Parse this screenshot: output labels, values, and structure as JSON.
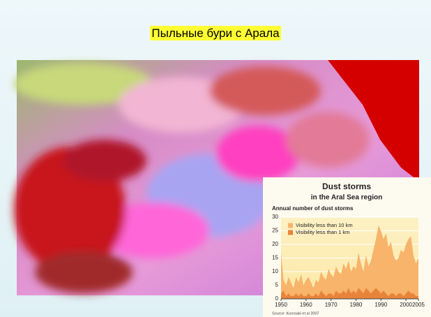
{
  "slide_title": "Пыльные бури с Арала",
  "chart_data": {
    "type": "area",
    "title": "Dust storms",
    "subtitle": "in the Aral Sea region",
    "y_label": "Annual number of dust storms",
    "source": "Source: Kurosaki et al 2007",
    "x": [
      1950,
      1951,
      1952,
      1953,
      1954,
      1955,
      1956,
      1957,
      1958,
      1959,
      1960,
      1961,
      1962,
      1963,
      1964,
      1965,
      1966,
      1967,
      1968,
      1969,
      1970,
      1971,
      1972,
      1973,
      1974,
      1975,
      1976,
      1977,
      1978,
      1979,
      1980,
      1981,
      1982,
      1983,
      1984,
      1985,
      1986,
      1987,
      1988,
      1989,
      1990,
      1991,
      1992,
      1993,
      1994,
      1995,
      1996,
      1997,
      1998,
      1999,
      2000,
      2001,
      2002,
      2003,
      2004,
      2005
    ],
    "series": [
      {
        "name": "Visibility less than 10 km",
        "color": "#f7b46a",
        "values": [
          17,
          7,
          5,
          8,
          6,
          4,
          8,
          6,
          9,
          5,
          7,
          8,
          6,
          4,
          7,
          6,
          10,
          8,
          7,
          11,
          9,
          8,
          12,
          10,
          9,
          13,
          11,
          14,
          10,
          12,
          11,
          17,
          13,
          10,
          16,
          12,
          14,
          18,
          22,
          27,
          25,
          22,
          24,
          19,
          21,
          16,
          14,
          15,
          18,
          17,
          20,
          22,
          23,
          16,
          13,
          15
        ]
      },
      {
        "name": "Visibility less than 1 km",
        "color": "#e8843a",
        "values": [
          2,
          3,
          1,
          2,
          1,
          1,
          2,
          1,
          2,
          1,
          1,
          2,
          1,
          1,
          2,
          1,
          3,
          2,
          1,
          2,
          2,
          1,
          3,
          2,
          2,
          3,
          2,
          4,
          2,
          3,
          2,
          4,
          3,
          2,
          4,
          3,
          2,
          3,
          4,
          3,
          2,
          3,
          2,
          1,
          2,
          2,
          1,
          2,
          2,
          1,
          2,
          3,
          2,
          2,
          1,
          1
        ]
      }
    ],
    "xlim": [
      1950,
      2005
    ],
    "xticks": [
      1950,
      1960,
      1970,
      1980,
      1990,
      2000,
      2005
    ],
    "ylim": [
      0,
      30
    ],
    "yticks": [
      0,
      5,
      10,
      15,
      20,
      25,
      30
    ],
    "grid": true,
    "legend": "upper left"
  }
}
